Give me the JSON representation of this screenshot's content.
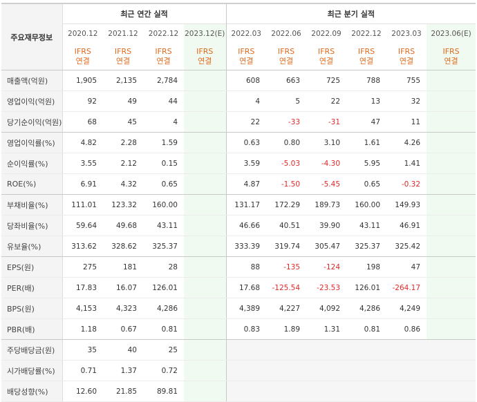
{
  "header": {
    "category_label": "주요재무정보",
    "annual_title": "최근 연간 실적",
    "quarter_title": "최근 분기 실적"
  },
  "periods": {
    "annual": [
      "2020.12",
      "2021.12",
      "2022.12",
      "2023.12(E)"
    ],
    "quarter": [
      "2022.03",
      "2022.06",
      "2022.09",
      "2022.12",
      "2023.03",
      "2023.06(E)"
    ]
  },
  "accounting": {
    "line1": "IFRS",
    "line2": "연결"
  },
  "rows": [
    {
      "label": "매출액(억원)",
      "annual": [
        "1,905",
        "2,135",
        "2,784",
        ""
      ],
      "quarter": [
        "608",
        "663",
        "725",
        "788",
        "755",
        ""
      ]
    },
    {
      "label": "영업이익(억원)",
      "annual": [
        "92",
        "49",
        "44",
        ""
      ],
      "quarter": [
        "4",
        "5",
        "22",
        "13",
        "32",
        ""
      ]
    },
    {
      "label": "당기순이익(억원)",
      "annual": [
        "68",
        "45",
        "4",
        ""
      ],
      "quarter": [
        "22",
        "-33",
        "-31",
        "47",
        "11",
        ""
      ]
    },
    {
      "label": "영업이익률(%)",
      "annual": [
        "4.82",
        "2.28",
        "1.59",
        ""
      ],
      "quarter": [
        "0.63",
        "0.80",
        "3.10",
        "1.61",
        "4.26",
        ""
      ]
    },
    {
      "label": "순이익률(%)",
      "annual": [
        "3.55",
        "2.12",
        "0.15",
        ""
      ],
      "quarter": [
        "3.59",
        "-5.03",
        "-4.30",
        "5.95",
        "1.41",
        ""
      ]
    },
    {
      "label": "ROE(%)",
      "annual": [
        "6.91",
        "4.32",
        "0.65",
        ""
      ],
      "quarter": [
        "4.87",
        "-1.50",
        "-5.45",
        "0.65",
        "-0.32",
        ""
      ]
    },
    {
      "label": "부채비율(%)",
      "annual": [
        "111.01",
        "123.32",
        "160.00",
        ""
      ],
      "quarter": [
        "131.17",
        "172.29",
        "189.73",
        "160.00",
        "149.93",
        ""
      ]
    },
    {
      "label": "당좌비율(%)",
      "annual": [
        "59.64",
        "49.68",
        "43.11",
        ""
      ],
      "quarter": [
        "46.66",
        "40.51",
        "39.90",
        "43.11",
        "46.91",
        ""
      ]
    },
    {
      "label": "유보율(%)",
      "annual": [
        "313.62",
        "328.62",
        "325.37",
        ""
      ],
      "quarter": [
        "333.39",
        "319.74",
        "305.47",
        "325.37",
        "325.42",
        ""
      ]
    },
    {
      "label": "EPS(원)",
      "annual": [
        "275",
        "181",
        "28",
        ""
      ],
      "quarter": [
        "88",
        "-135",
        "-124",
        "198",
        "47",
        ""
      ]
    },
    {
      "label": "PER(배)",
      "annual": [
        "17.83",
        "16.07",
        "126.01",
        ""
      ],
      "quarter": [
        "17.68",
        "-125.54",
        "-23.53",
        "126.01",
        "-264.17",
        ""
      ]
    },
    {
      "label": "BPS(원)",
      "annual": [
        "4,153",
        "4,323",
        "4,286",
        ""
      ],
      "quarter": [
        "4,389",
        "4,227",
        "4,092",
        "4,286",
        "4,249",
        ""
      ]
    },
    {
      "label": "PBR(배)",
      "annual": [
        "1.18",
        "0.67",
        "0.81",
        ""
      ],
      "quarter": [
        "0.83",
        "1.89",
        "1.31",
        "0.81",
        "0.86",
        ""
      ]
    },
    {
      "label": "주당배당금(원)",
      "annual": [
        "35",
        "40",
        "25",
        ""
      ],
      "quarter": [
        "",
        "",
        "",
        "",
        "",
        ""
      ]
    },
    {
      "label": "시가배당률(%)",
      "annual": [
        "0.71",
        "1.37",
        "0.72",
        ""
      ],
      "quarter": [
        "",
        "",
        "",
        "",
        "",
        ""
      ]
    },
    {
      "label": "배당성향(%)",
      "annual": [
        "12.60",
        "21.85",
        "89.81",
        ""
      ],
      "quarter": [
        "",
        "",
        "",
        "",
        "",
        ""
      ]
    }
  ],
  "colors": {
    "ifrs": "#e06a1c",
    "negative": "#e02828",
    "estimate_bg": "#f1faf1",
    "estimate_text": "#3c9a3c"
  }
}
